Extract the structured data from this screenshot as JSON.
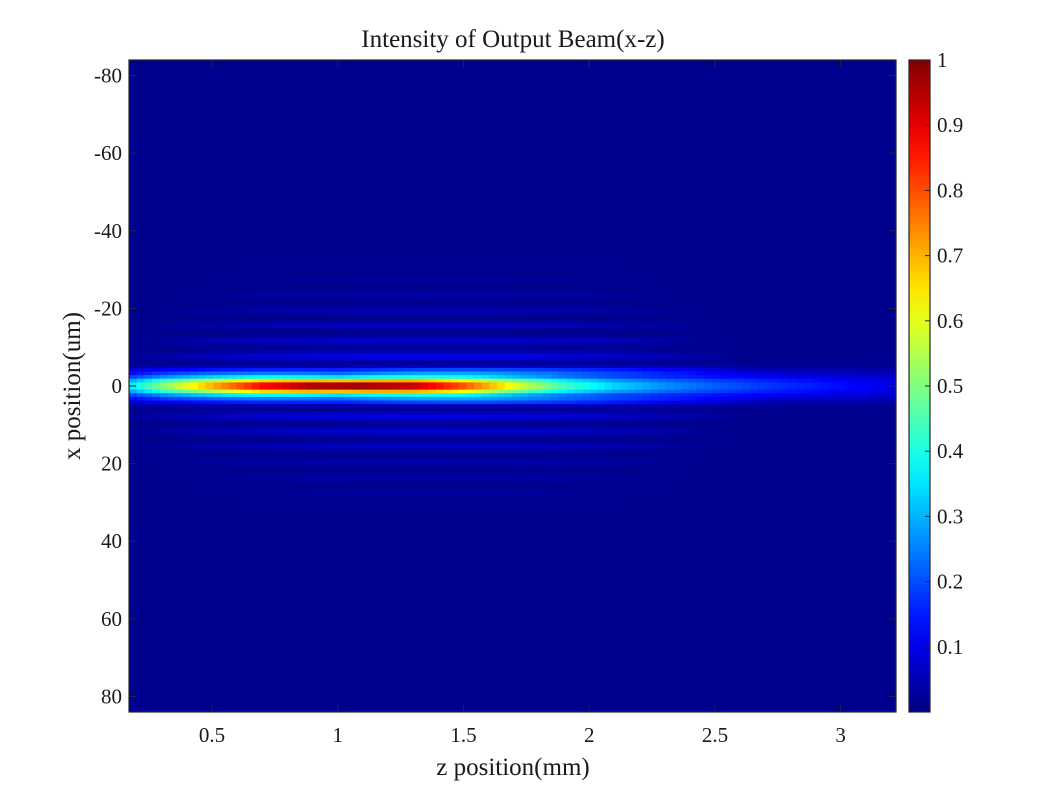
{
  "chart_data": {
    "type": "heatmap",
    "title": "Intensity of Output Beam(x-z)",
    "xlabel": "z position(mm)",
    "ylabel": "x position(um)",
    "xlim": [
      0.17,
      3.22
    ],
    "ylim": [
      -84,
      84
    ],
    "y_reversed": true,
    "xticks": [
      0.5,
      1,
      1.5,
      2,
      2.5,
      3
    ],
    "xtick_labels": [
      "0.5",
      "1",
      "1.5",
      "2",
      "2.5",
      "3"
    ],
    "yticks": [
      -80,
      -60,
      -40,
      -20,
      0,
      20,
      40,
      60,
      80
    ],
    "ytick_labels": [
      "-80",
      "-60",
      "-40",
      "-20",
      "0",
      "20",
      "40",
      "60",
      "80"
    ],
    "colormap": "jet",
    "colorbar": {
      "range": [
        0,
        1
      ],
      "ticks": [
        0.1,
        0.2,
        0.3,
        0.4,
        0.5,
        0.6,
        0.7,
        0.8,
        0.9,
        1
      ],
      "tick_labels": [
        "0.1",
        "0.2",
        "0.3",
        "0.4",
        "0.5",
        "0.6",
        "0.7",
        "0.8",
        "0.9",
        "1"
      ]
    },
    "beam": {
      "center_x_um": 0,
      "peak_intensity": 1,
      "peak_z_mm": 1.0,
      "core_half_width_um": 1.6,
      "intensity_profile_along_z": {
        "z": [
          0.17,
          0.3,
          0.5,
          0.7,
          0.9,
          1.1,
          1.3,
          1.5,
          1.7,
          1.9,
          2.1,
          2.3,
          2.5,
          2.7,
          2.9,
          3.1,
          3.22
        ],
        "intensity": [
          0.35,
          0.52,
          0.72,
          0.9,
          0.99,
          1.0,
          0.96,
          0.82,
          0.62,
          0.45,
          0.34,
          0.27,
          0.22,
          0.18,
          0.15,
          0.12,
          0.1
        ]
      },
      "fringe_spacing_um": 3.9,
      "fringe_extent_um": 34,
      "fringe_z_range_mm": [
        0.3,
        2.4
      ],
      "fringe_peak_intensity": 0.18
    }
  }
}
